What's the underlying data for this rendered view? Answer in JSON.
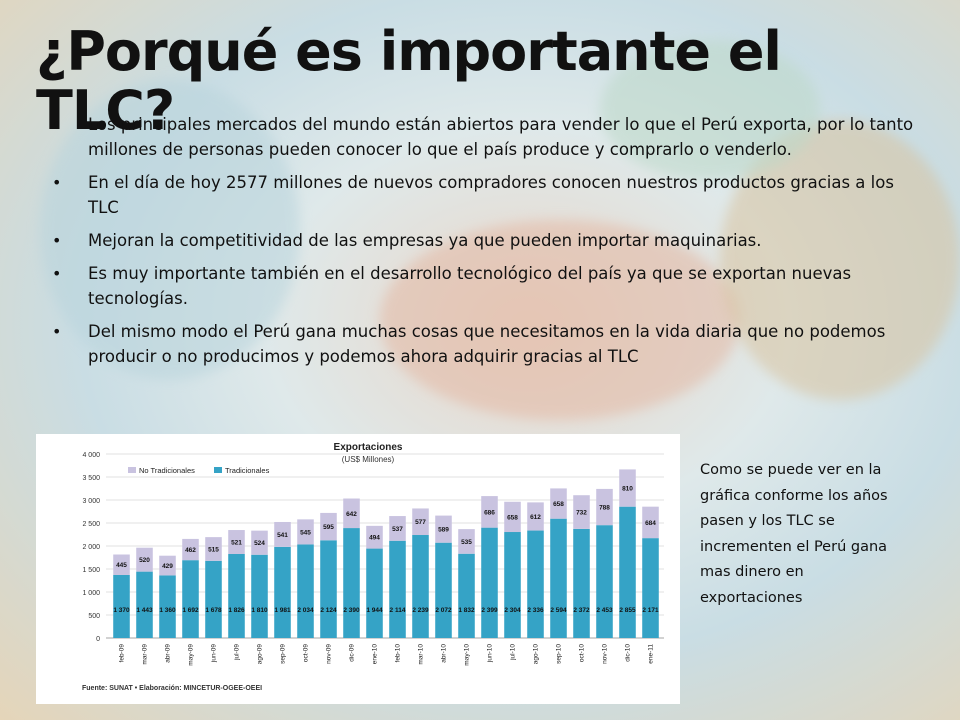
{
  "title": "¿Porqué es importante el TLC?",
  "bullets": [
    "Los principales mercados del mundo están abiertos para vender lo que el Perú exporta, por lo tanto millones de personas pueden conocer lo que el país produce y comprarlo o venderlo.",
    "En el día de hoy 2577 millones de nuevos compradores conocen nuestros productos gracias a los TLC",
    "Mejoran la competitividad de las empresas ya que pueden importar maquinarias.",
    "Es muy importante también en el desarrollo tecnológico del país ya que se exportan nuevas tecnologías.",
    "Del mismo modo el Perú gana muchas cosas que necesitamos en la vida diaria que no podemos producir o no producimos y podemos ahora adquirir gracias al TLC"
  ],
  "bullet_glyph": "•",
  "side_note": "Como se puede ver en la gráfica conforme los años pasen y los TLC se incrementen el Perú gana mas dinero en exportaciones",
  "chart_data": {
    "type": "bar",
    "stacked": true,
    "title": "Exportaciones",
    "subtitle": "(US$ Millones)",
    "source": "Fuente: SUNAT • Elaboración: MINCETUR-OGEE-OEEI",
    "categories": [
      "feb-09",
      "mar-09",
      "abr-09",
      "may-09",
      "jun-09",
      "jul-09",
      "ago-09",
      "sep-09",
      "oct-09",
      "nov-09",
      "dic-09",
      "ene-10",
      "feb-10",
      "mar-10",
      "abr-10",
      "may-10",
      "jun-10",
      "jul-10",
      "ago-10",
      "sep-10",
      "oct-10",
      "nov-10",
      "dic-10",
      "ene-11"
    ],
    "series": [
      {
        "name": "Tradicionales",
        "color": "#35a3c6",
        "values": [
          1370,
          1443,
          1360,
          1692,
          1678,
          1826,
          1810,
          1981,
          2034,
          2124,
          2390,
          1944,
          2114,
          2239,
          2072,
          1832,
          2399,
          2304,
          2336,
          2594,
          2372,
          2453,
          2855,
          2171
        ]
      },
      {
        "name": "No Tradicionales",
        "color": "#c9c3e0",
        "values": [
          445,
          520,
          429,
          462,
          515,
          521,
          524,
          541,
          545,
          595,
          642,
          494,
          537,
          577,
          589,
          535,
          686,
          658,
          612,
          658,
          732,
          788,
          810,
          684
        ]
      }
    ],
    "value_labels": {
      "Tradicionales": [
        "1 370",
        "1 443",
        "1 360",
        "1 692",
        "1 678",
        "1 826",
        "1 810",
        "1 981",
        "2 034",
        "2 124",
        "2 390",
        "1 944",
        "2 114",
        "2 239",
        "2 072",
        "1 832",
        "2 399",
        "2 304",
        "2 336",
        "2 594",
        "2 372",
        "2 453",
        "2 855",
        "2 171"
      ],
      "No Tradicionales": [
        "445",
        "520",
        "429",
        "462",
        "515",
        "521",
        "524",
        "541",
        "545",
        "595",
        "642",
        "494",
        "537",
        "577",
        "589",
        "535",
        "686",
        "658",
        "612",
        "658",
        "732",
        "788",
        "810",
        "684"
      ]
    },
    "ylim": [
      0,
      4000
    ],
    "yticks": [
      "0",
      "500",
      "1 000",
      "1 500",
      "2 000",
      "2 500",
      "3 000",
      "3 500",
      "4 000"
    ],
    "ytick_values": [
      0,
      500,
      1000,
      1500,
      2000,
      2500,
      3000,
      3500,
      4000
    ],
    "legend_position": "top-left",
    "grid": true
  }
}
